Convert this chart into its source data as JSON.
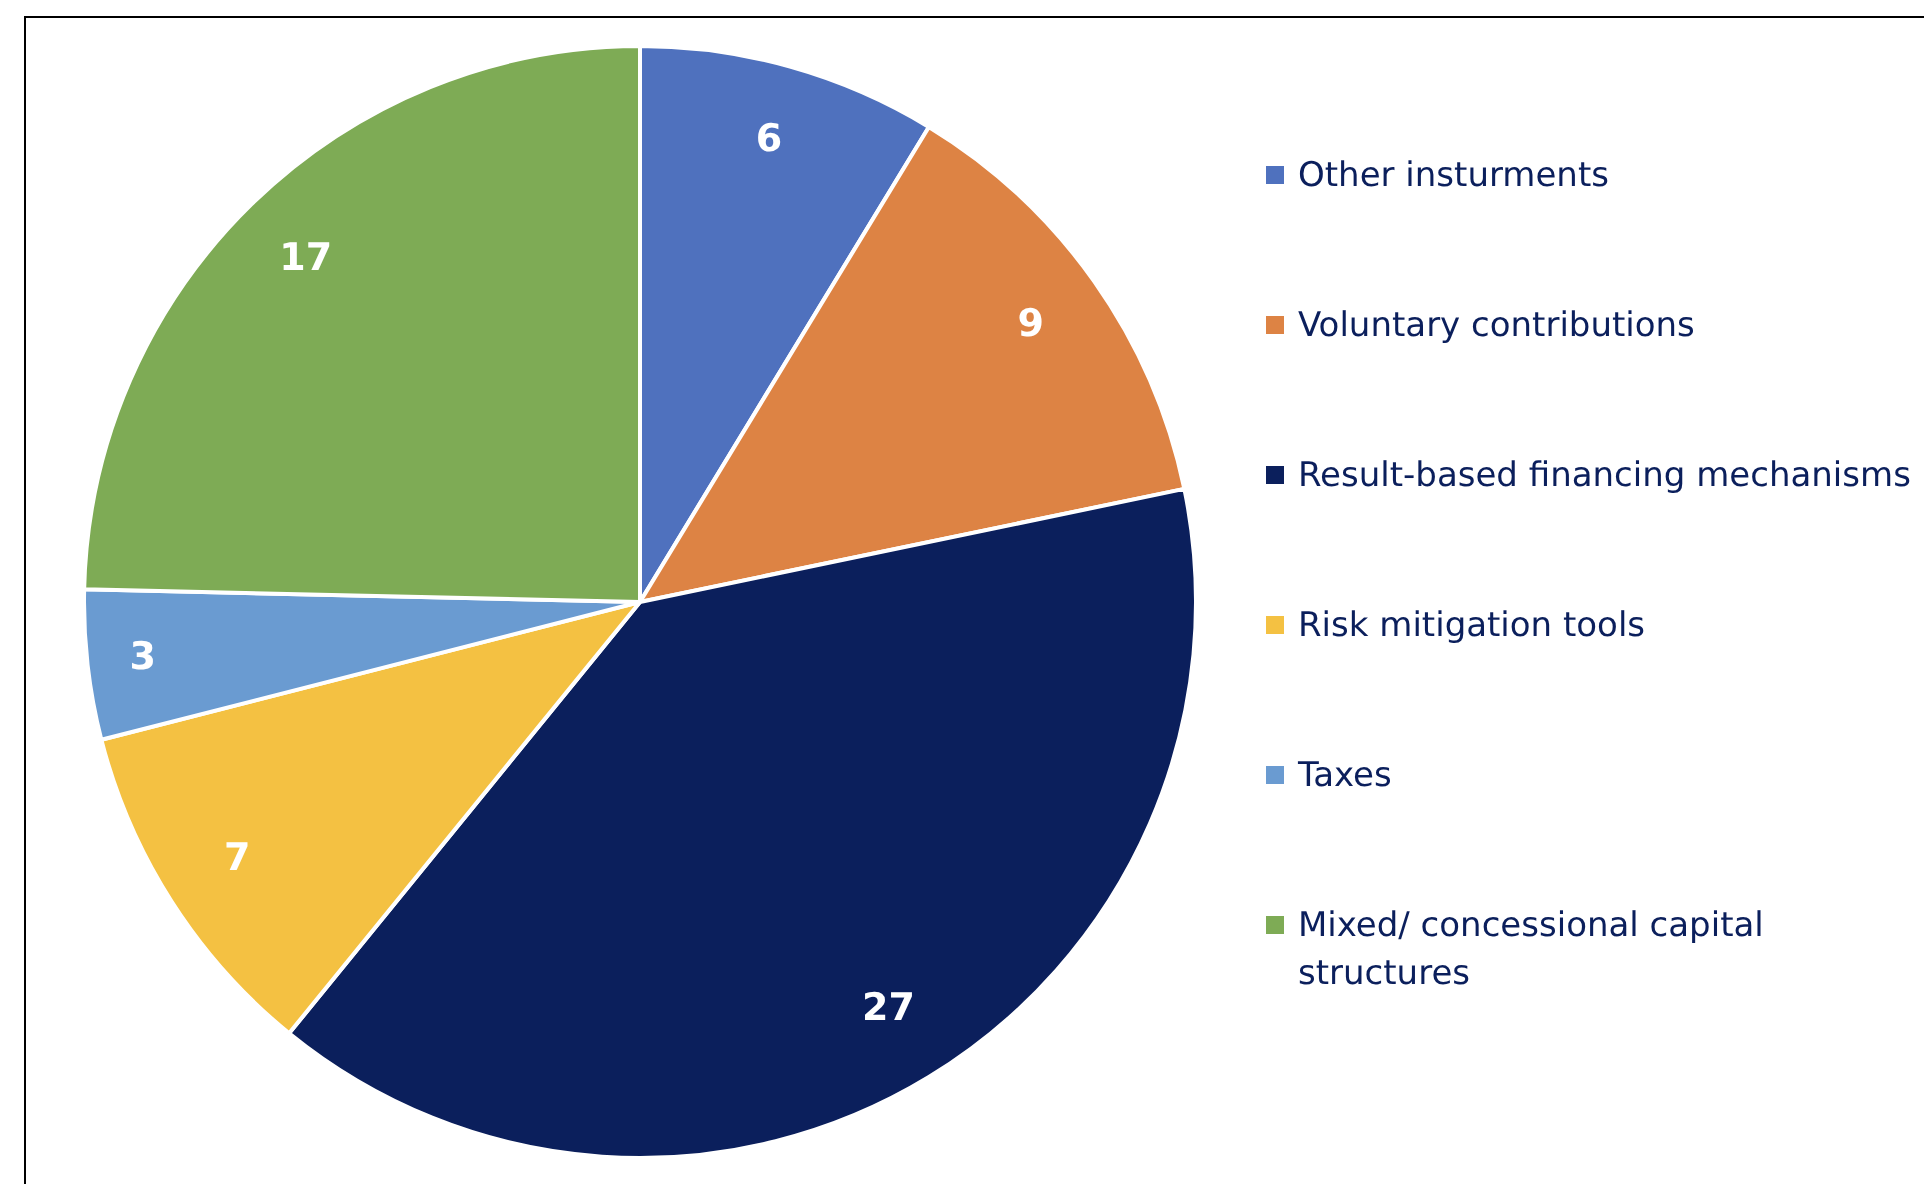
{
  "chart_data": {
    "type": "pie",
    "categories": [
      "Other insturments",
      "Voluntary contributions",
      "Result-based financing mechanisms",
      "Risk mitigation tools",
      "Taxes",
      "Mixed/ concessional capital structures"
    ],
    "values": [
      6,
      9,
      27,
      7,
      3,
      17
    ],
    "colors": [
      "#4f71be",
      "#dd8344",
      "#0b1f5c",
      "#f4c142",
      "#6a9bd1",
      "#7eab55"
    ],
    "data_labels": true,
    "legend": "right"
  }
}
